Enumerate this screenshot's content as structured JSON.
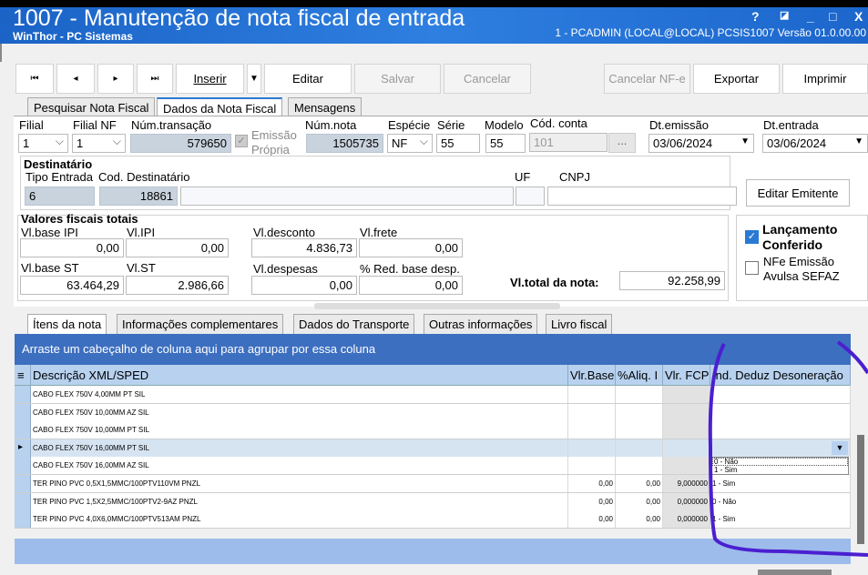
{
  "window": {
    "title": "1007 - Manutenção de nota fiscal de entrada",
    "app": "WinThor - PC Sistemas",
    "user_info": "1 - PCADMIN (LOCAL@LOCAL)  PCSIS1007  Versão  01.0.00.00",
    "controls": [
      "?",
      "◪",
      "_",
      "□",
      "X"
    ]
  },
  "toolbar": {
    "first": "⏮",
    "prev": "◂",
    "next": "▸",
    "last": "⏭",
    "insert": "Inserir",
    "insert_dd": "▼",
    "edit": "Editar",
    "save": "Salvar",
    "cancel": "Cancelar",
    "cancel_nfe": "Cancelar NF-e",
    "export": "Exportar",
    "print": "Imprimir"
  },
  "tabs": [
    "Pesquisar Nota Fiscal",
    "Dados da Nota Fiscal",
    "Mensagens"
  ],
  "form": {
    "filial": {
      "label": "Filial",
      "value": "1"
    },
    "filial_nf": {
      "label": "Filial NF",
      "value": "1"
    },
    "num_transacao": {
      "label": "Núm.transação",
      "value": "579650"
    },
    "emissao_propria": {
      "label": "Emissão Própria",
      "checked": true
    },
    "num_nota": {
      "label": "Núm.nota",
      "value": "1505735"
    },
    "especie": {
      "label": "Espécie",
      "value": "NF"
    },
    "serie": {
      "label": "Série",
      "value": "55"
    },
    "modelo": {
      "label": "Modelo",
      "value": "55"
    },
    "cod_conta": {
      "label": "Cód. conta",
      "value": "101",
      "btn": "..."
    },
    "dt_emissao": {
      "label": "Dt.emissão",
      "value": "03/06/2024"
    },
    "dt_entrada": {
      "label": "Dt.entrada",
      "value": "03/06/2024"
    }
  },
  "destinatario": {
    "title": "Destinatário",
    "tipo_entrada": {
      "label": "Tipo Entrada",
      "value": "6"
    },
    "cod": {
      "label": "Cod. Destinatário",
      "value": "18861"
    },
    "name": "",
    "uf": {
      "label": "UF",
      "value": ""
    },
    "cnpj": {
      "label": "CNPJ",
      "value": ""
    },
    "edit_btn": "Editar Emitente"
  },
  "valores": {
    "title": "Valores fiscais totais",
    "base_ipi": {
      "label": "Vl.base IPI",
      "value": "0,00"
    },
    "ipi": {
      "label": "Vl.IPI",
      "value": "0,00"
    },
    "desconto": {
      "label": "Vl.desconto",
      "value": "4.836,73"
    },
    "frete": {
      "label": "Vl.frete",
      "value": "0,00"
    },
    "base_st": {
      "label": "Vl.base ST",
      "value": "63.464,29"
    },
    "st": {
      "label": "Vl.ST",
      "value": "2.986,66"
    },
    "despesas": {
      "label": "Vl.despesas",
      "value": "0,00"
    },
    "red_base": {
      "label": "% Red. base desp.",
      "value": "0,00"
    },
    "total": {
      "label": "Vl.total da nota:",
      "value": "92.258,99"
    }
  },
  "lancamento": {
    "label": "Lançamento Conferido",
    "checked": true
  },
  "nfe_avulsa": {
    "label": "NFe Emissão Avulsa SEFAZ",
    "checked": false
  },
  "inner_tabs": [
    "Ítens da nota",
    "Informações complementares",
    "Dados do Transporte",
    "Outras informações",
    "Livro fiscal"
  ],
  "grid": {
    "group_hint": "Arraste um cabeçalho de coluna aqui para agrupar por essa coluna",
    "menu_icon": "≡",
    "columns": [
      "Descrição XML/SPED",
      "Vlr.Base",
      "%Aliq. I",
      "Vlr. FCP",
      "Ind. Deduz Desoneração"
    ],
    "rows": [
      [
        "CABO FLEX 750V  4,00MM PT SIL",
        "",
        "",
        "",
        ""
      ],
      [
        "CABO FLEX 750V  10,00MM AZ SIL",
        "",
        "",
        "",
        ""
      ],
      [
        "CABO FLEX 750V  10,00MM PT SIL",
        "",
        "",
        "",
        ""
      ],
      [
        "CABO FLEX 750V  16,00MM PT SIL",
        "",
        "",
        "",
        ""
      ],
      [
        "CABO FLEX 750V  16,00MM AZ SIL",
        "",
        "",
        "",
        ""
      ],
      [
        "TER PINO PVC 0,5X1,5MMC/100PTV110VM PNZL",
        "0,00",
        "0,00",
        "9,000000",
        "1 - Sim"
      ],
      [
        "TER PINO PVC 1,5X2,5MMC/100PTV2-9AZ PNZL",
        "0,00",
        "0,00",
        "0,000000",
        "0 - Não"
      ],
      [
        "TER PINO PVC 4,0X6,0MMC/100PTV513AM PNZL",
        "0,00",
        "0,00",
        "0,000000",
        "1 - Sim"
      ]
    ],
    "selected_row": 3,
    "dropdown_options": [
      "0 - Não",
      "1 - Sim"
    ]
  },
  "colors": {
    "titlebar": "#1b63c6",
    "group_panel": "#3d6fc0",
    "header": "#b7d1ef",
    "annotation": "#4b1fd0"
  }
}
